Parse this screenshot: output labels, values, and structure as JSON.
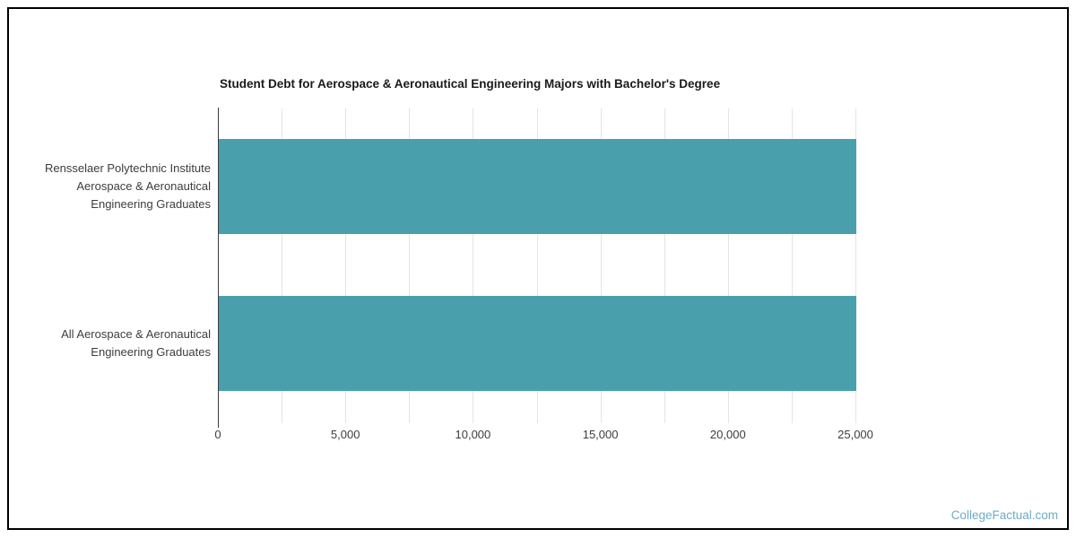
{
  "chart_data": {
    "type": "bar",
    "orientation": "horizontal",
    "title": "Student Debt for Aerospace & Aeronautical Engineering Majors with Bachelor's Degree",
    "categories": [
      {
        "lines": [
          "Rensselaer Polytechnic Institute",
          "Aerospace & Aeronautical",
          "Engineering Graduates"
        ]
      },
      {
        "lines": [
          "All Aerospace & Aeronautical",
          "Engineering Graduates"
        ]
      }
    ],
    "values": [
      25000,
      25000
    ],
    "xlabel": "",
    "ylabel": "",
    "xlim": [
      0,
      25000
    ],
    "x_tick_values": [
      0,
      5000,
      10000,
      15000,
      20000,
      25000
    ],
    "x_tick_labels": [
      "0",
      "5,000",
      "10,000",
      "15,000",
      "20,000",
      "25,000"
    ],
    "minor_gridline_interval": 2500,
    "grid": "vertical",
    "legend": "none",
    "colors": {
      "bar": "#4A9FAD",
      "gridline": "#E4E4E4",
      "axis": "#3B3B3B",
      "title_text": "#1A1A1A",
      "label_text": "#3D3D3D"
    }
  },
  "watermark": {
    "label": "CollegeFactual.com",
    "color": "#6BADC8"
  }
}
